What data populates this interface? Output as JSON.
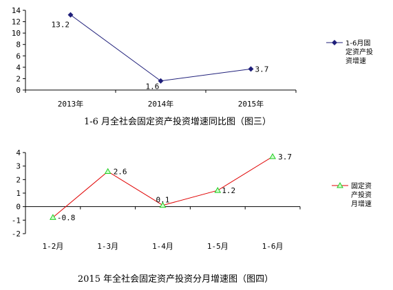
{
  "chart_data": [
    {
      "type": "line",
      "title": "1-6 月全社会固定资产投资增速同比图（图三）",
      "categories": [
        "2013年",
        "2014年",
        "2015年"
      ],
      "series": [
        {
          "name": "1-6月固定资产投资增速",
          "values": [
            13.2,
            1.6,
            3.7
          ]
        }
      ],
      "data_labels": [
        "13.2",
        "1.6",
        "3.7"
      ],
      "y_ticks": [
        "0",
        "2",
        "4",
        "6",
        "8",
        "10",
        "12",
        "14"
      ],
      "ylim": [
        0,
        14
      ],
      "legend_lines": [
        "1-6月固",
        "定资产投",
        "资增速"
      ],
      "legend_position": "right",
      "grid": false,
      "colors": {
        "line": "#1f1f7a",
        "marker": "#1f1f7a"
      },
      "marker": "diamond"
    },
    {
      "type": "line",
      "title": "2015 年全社会固定资产投资分月增速图（图四）",
      "categories": [
        "1-2月",
        "1-3月",
        "1-4月",
        "1-5月",
        "1-6月"
      ],
      "series": [
        {
          "name": "固定资产投资月增速",
          "values": [
            -0.8,
            2.6,
            0.1,
            1.2,
            3.7
          ]
        }
      ],
      "data_labels": [
        "-0.8",
        "2.6",
        "0.1",
        "1.2",
        "3.7"
      ],
      "y_ticks": [
        "-2",
        "-1",
        "0",
        "1",
        "2",
        "3",
        "4"
      ],
      "ylim": [
        -2,
        4
      ],
      "legend_lines": [
        "固定资",
        "产投资",
        "月增速"
      ],
      "legend_position": "right",
      "grid": false,
      "colors": {
        "line": "#e00000",
        "marker": "#22cc22"
      },
      "marker": "triangle"
    }
  ]
}
